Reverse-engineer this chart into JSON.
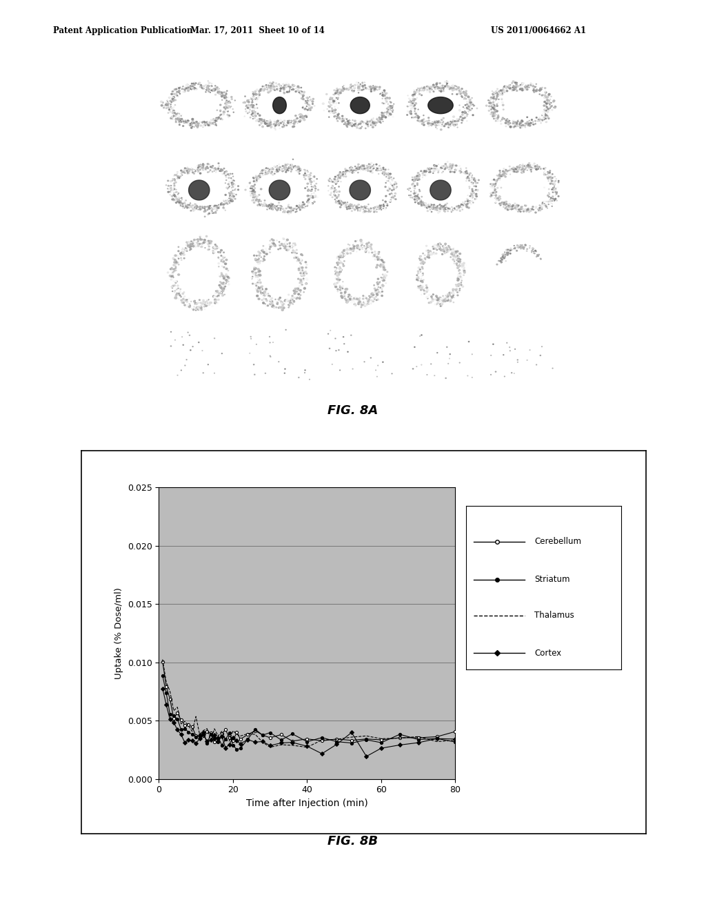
{
  "header_left": "Patent Application Publication",
  "header_center": "Mar. 17, 2011  Sheet 10 of 14",
  "header_right": "US 2011/0064662 A1",
  "fig8a_label": "FIG. 8A",
  "fig8b_label": "FIG. 8B",
  "chart_xlabel": "Time after Injection (min)",
  "chart_ylabel": "Uptake (% Dose/ml)",
  "chart_xlim": [
    0,
    80
  ],
  "chart_ylim": [
    0.0,
    0.025
  ],
  "chart_yticks": [
    0.0,
    0.005,
    0.01,
    0.015,
    0.02,
    0.025
  ],
  "chart_xticks": [
    0,
    20,
    40,
    60,
    80
  ],
  "legend_entries": [
    "Cerebellum",
    "Striatum",
    "Thalamus",
    "Cortex"
  ],
  "background_color": "#ffffff",
  "plot_bg_color": "#bbbbbb",
  "grid_color": "#777777",
  "img_bg_color": "#3a3a3a"
}
